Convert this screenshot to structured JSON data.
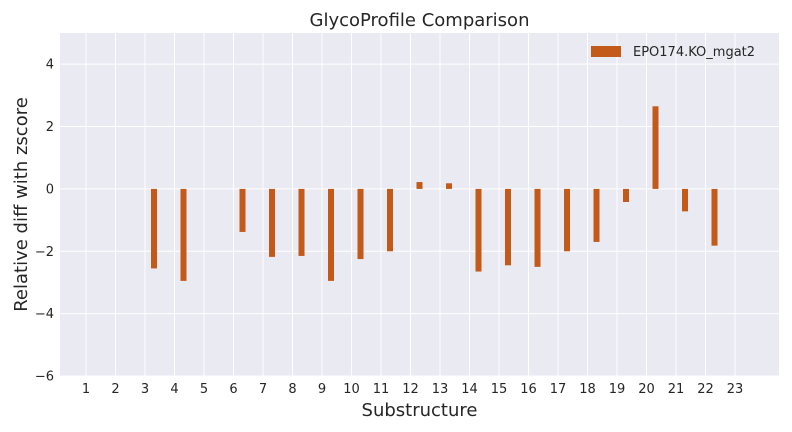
{
  "chart_data": {
    "type": "bar",
    "title": "GlycoProfile Comparison",
    "xlabel": "Substructure",
    "ylabel": "Relative diff with zscore",
    "categories": [
      "1",
      "2",
      "3",
      "4",
      "5",
      "6",
      "7",
      "8",
      "9",
      "10",
      "11",
      "12",
      "13",
      "14",
      "15",
      "16",
      "17",
      "18",
      "19",
      "20",
      "21",
      "22",
      "23"
    ],
    "series": [
      {
        "name": "EPO174.KO_mgat2",
        "color": "#c35a1a",
        "values": [
          null,
          null,
          -2.55,
          -2.95,
          null,
          -1.38,
          -2.18,
          -2.15,
          -2.95,
          -2.25,
          -2.0,
          0.22,
          0.18,
          -2.65,
          -2.45,
          -2.5,
          -2.0,
          -1.7,
          -0.42,
          2.65,
          -0.72,
          -1.82,
          null
        ]
      }
    ],
    "ylim": [
      -6,
      5
    ],
    "yticks": [
      "−6",
      "−4",
      "−2",
      "0",
      "2",
      "4"
    ],
    "ytick_values": [
      -6,
      -4,
      -2,
      0,
      2,
      4
    ],
    "grid": true,
    "legend_position": "top-right",
    "background_color": "#eaeaf2",
    "grid_color": "#ffffff"
  }
}
